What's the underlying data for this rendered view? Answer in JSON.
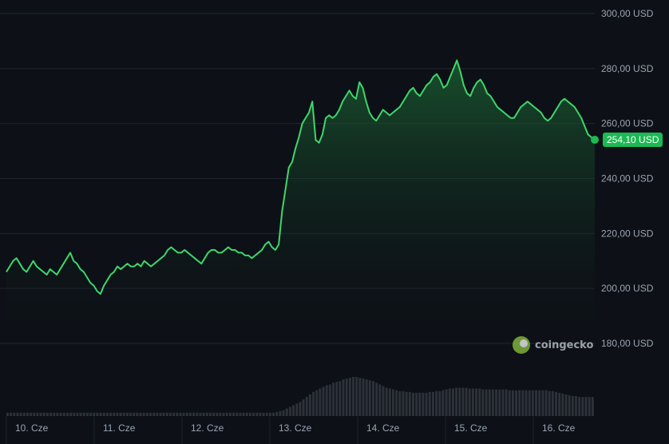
{
  "chart_data": {
    "type": "area",
    "title": "",
    "y_ticks": [
      "300,00 USD",
      "280,00 USD",
      "260,00 USD",
      "240,00 USD",
      "220,00 USD",
      "200,00 USD",
      "180,00 USD"
    ],
    "y_tick_values": [
      300,
      280,
      260,
      240,
      220,
      200,
      180
    ],
    "ylim": [
      180,
      300
    ],
    "x_ticks": [
      "10. Cze",
      "11. Cze",
      "12. Cze",
      "13. Cze",
      "14. Cze",
      "15. Cze",
      "16. Cze"
    ],
    "x_range": [
      0,
      6.7
    ],
    "current_price_label": "254,10 USD",
    "watermark": "coingecko",
    "colors": {
      "line": "#3fd66b",
      "badge": "#1cb954",
      "volume": "#2c313a"
    },
    "series": [
      {
        "values": [
          206,
          208,
          210,
          211,
          209,
          207,
          206,
          208,
          210,
          208,
          207,
          206,
          205,
          207,
          206,
          205,
          207,
          209,
          211,
          213,
          210,
          209,
          207,
          206,
          204,
          202,
          201,
          199,
          198,
          201,
          203,
          205,
          206,
          208,
          207,
          208,
          209,
          208,
          208,
          209,
          208,
          210,
          209,
          208,
          209,
          210,
          211,
          212,
          214,
          215,
          214,
          213,
          213,
          214,
          213,
          212,
          211,
          210,
          209,
          211,
          213,
          214,
          214,
          213,
          213,
          214,
          215,
          214,
          214,
          213,
          213,
          212,
          212,
          211,
          212,
          213,
          214,
          216,
          217,
          215,
          214,
          216,
          228,
          236,
          244,
          246,
          251,
          255,
          260,
          262,
          264,
          268,
          254,
          253,
          256,
          262,
          263,
          262,
          263,
          265,
          268,
          270,
          272,
          270,
          269,
          275,
          273,
          268,
          264,
          262,
          261,
          263,
          265,
          264,
          263,
          264,
          265,
          266,
          268,
          270,
          272,
          273,
          271,
          270,
          272,
          274,
          275,
          277,
          278,
          276,
          273,
          274,
          277,
          280,
          283,
          279,
          274,
          271,
          270,
          273,
          275,
          276,
          274,
          271,
          270,
          268,
          266,
          265,
          264,
          263,
          262,
          262,
          264,
          266,
          267,
          268,
          267,
          266,
          265,
          264,
          262,
          261,
          262,
          264,
          266,
          268,
          269,
          268,
          267,
          266,
          264,
          262,
          259,
          256,
          255,
          254.1
        ],
        "y_trail_note": ""
      }
    ],
    "volume": [
      4,
      4,
      4,
      4,
      4,
      4,
      4,
      4,
      4,
      4,
      4,
      4,
      4,
      4,
      4,
      4,
      4,
      4,
      4,
      4,
      4,
      4,
      4,
      4,
      4,
      4,
      4,
      4,
      4,
      4,
      4,
      4,
      4,
      4,
      4,
      4,
      4,
      4,
      4,
      4,
      4,
      4,
      4,
      4,
      4,
      4,
      4,
      4,
      4,
      4,
      4,
      4,
      4,
      4,
      4,
      4,
      4,
      4,
      4,
      4,
      4,
      4,
      4,
      4,
      4,
      4,
      4,
      4,
      4,
      4,
      4,
      4,
      4,
      4,
      4,
      4,
      4,
      4,
      4,
      4,
      4,
      5,
      6,
      7,
      9,
      11,
      13,
      15,
      17,
      20,
      23,
      26,
      29,
      31,
      33,
      35,
      37,
      38,
      40,
      41,
      42,
      44,
      45,
      46,
      47,
      47,
      46,
      45,
      44,
      43,
      42,
      40,
      38,
      36,
      34,
      33,
      32,
      31,
      30,
      30,
      29,
      29,
      28,
      28,
      28,
      28,
      28,
      29,
      29,
      30,
      30,
      31,
      32,
      33,
      33,
      34,
      34,
      34,
      34,
      33,
      33,
      33,
      33,
      32,
      32,
      32,
      32,
      32,
      32,
      32,
      32,
      31,
      31,
      31,
      31,
      31,
      31,
      31,
      31,
      31,
      31,
      31,
      31,
      30,
      30,
      29,
      28,
      27,
      26,
      25,
      24,
      24,
      23,
      23,
      23,
      23,
      23
    ]
  }
}
